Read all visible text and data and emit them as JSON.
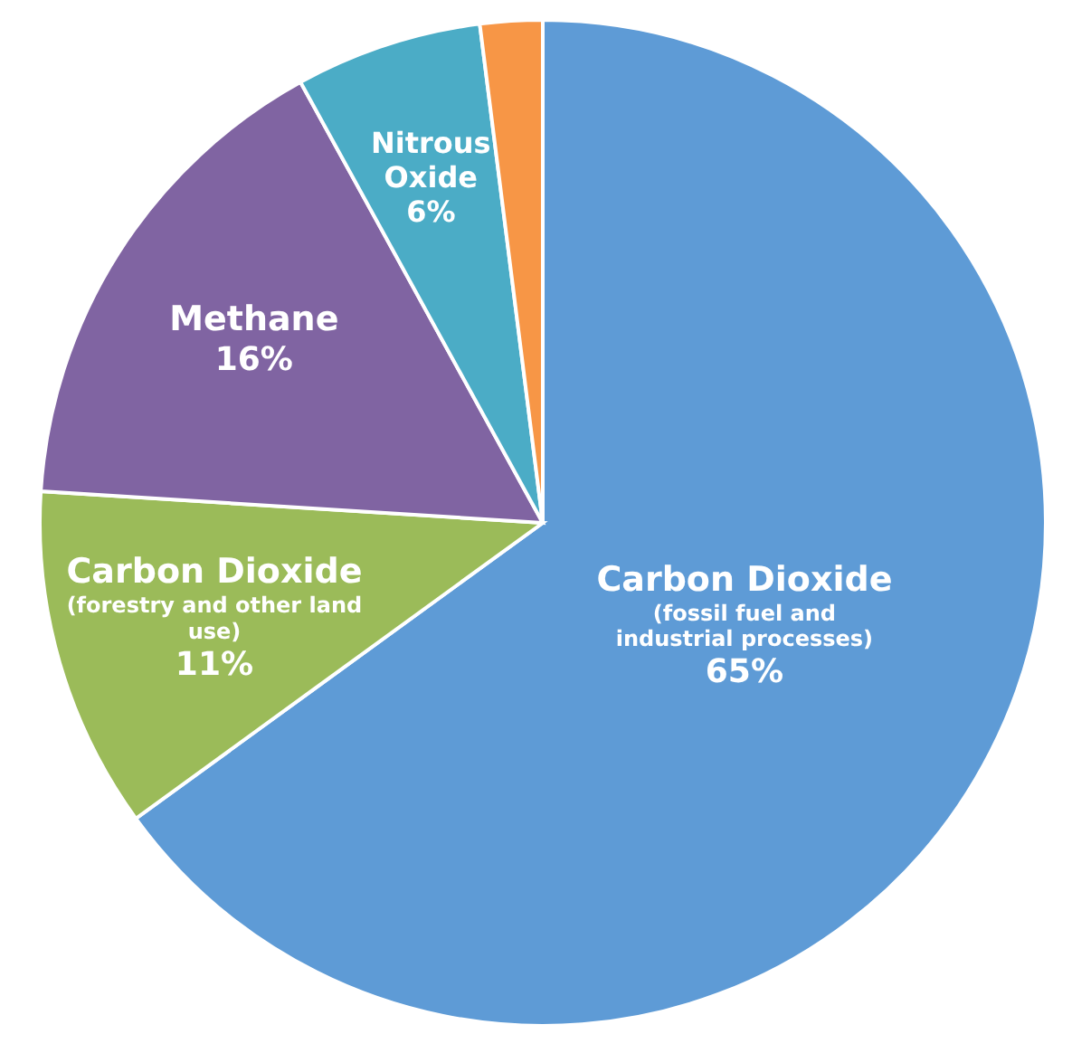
{
  "chart_data": {
    "type": "pie",
    "categories": [
      "Carbon Dioxide (fossil fuel and industrial processes)",
      "Carbon Dioxide (forestry and other land use)",
      "Methane",
      "Nitrous Oxide",
      null
    ],
    "values": [
      65,
      11,
      16,
      6,
      2
    ],
    "colors": [
      "#5e9bd6",
      "#9bbb59",
      "#8064a2",
      "#4bacc6",
      "#f79646"
    ],
    "value_labels": [
      "65%",
      "11%",
      "16%",
      "6%",
      null
    ]
  }
}
